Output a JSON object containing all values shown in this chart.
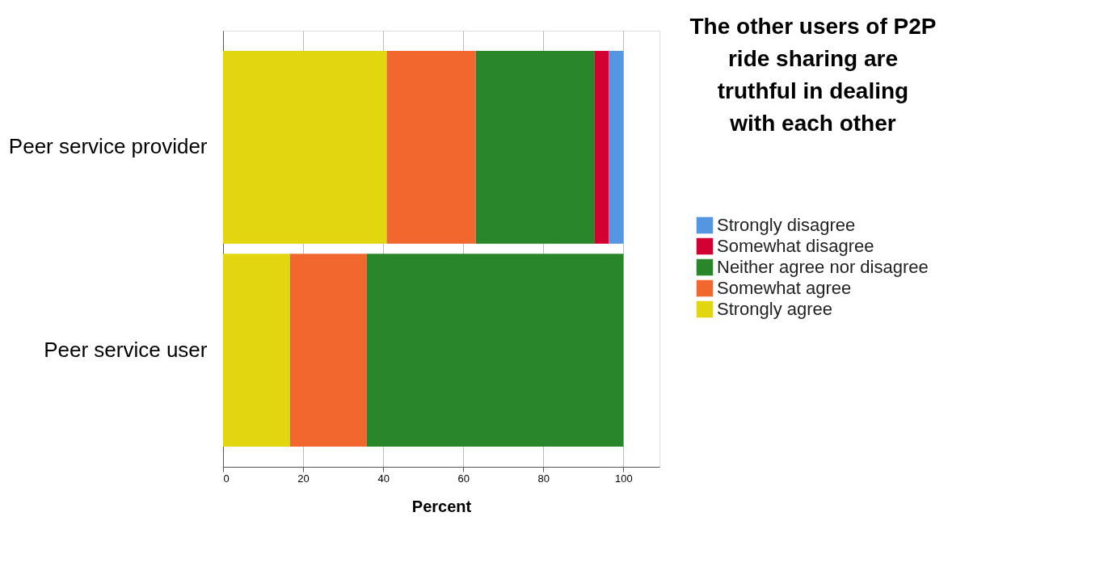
{
  "chart_data": {
    "type": "bar",
    "orientation": "horizontal",
    "stacked": true,
    "title": "The other users of P2P ride sharing are truthful in dealing with each other",
    "xlabel": "Percent",
    "categories": [
      "Peer service provider",
      "Peer service user"
    ],
    "series": [
      {
        "name": "Strongly agree",
        "color": "#e1d60f",
        "values": [
          40.9,
          16.7
        ]
      },
      {
        "name": "Somewhat agree",
        "color": "#f1672d",
        "values": [
          22.2,
          19.2
        ]
      },
      {
        "name": "Neither agree nor disagree",
        "color": "#29862a",
        "values": [
          29.6,
          64.1
        ]
      },
      {
        "name": "Somewhat disagree",
        "color": "#d30034",
        "values": [
          3.6,
          null
        ]
      },
      {
        "name": "Strongly disagree",
        "color": "#5596e2",
        "values": [
          3.7,
          null
        ]
      }
    ],
    "xlim": [
      0,
      109
    ],
    "xticks": [
      0,
      20,
      40,
      60,
      80,
      100
    ],
    "grid": "x",
    "legend": "right"
  }
}
